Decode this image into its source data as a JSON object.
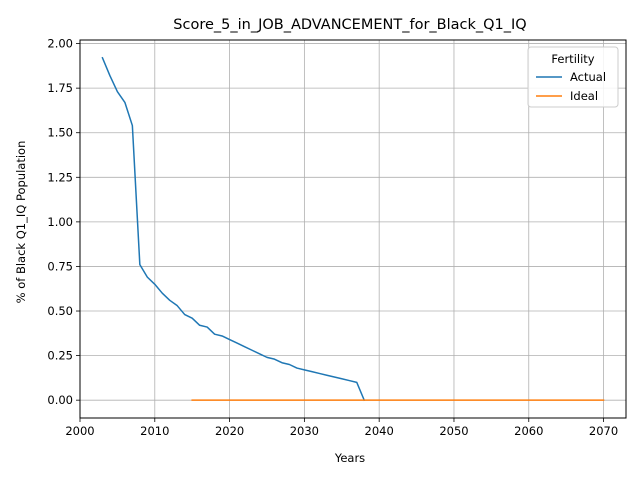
{
  "chart_data": {
    "type": "line",
    "title": "Score_5_in_JOB_ADVANCEMENT_for_Black_Q1_IQ",
    "xlabel": "Years",
    "ylabel": "% of Black Q1_IQ Population",
    "xlim": [
      2000,
      2073
    ],
    "ylim": [
      -0.1,
      2.02
    ],
    "xticks": [
      2000,
      2010,
      2020,
      2030,
      2040,
      2050,
      2060,
      2070
    ],
    "yticks": [
      0.0,
      0.25,
      0.5,
      0.75,
      1.0,
      1.25,
      1.5,
      1.75,
      2.0
    ],
    "xtick_labels": [
      "2000",
      "2010",
      "2020",
      "2030",
      "2040",
      "2050",
      "2060",
      "2070"
    ],
    "ytick_labels": [
      "0.00",
      "0.25",
      "0.50",
      "0.75",
      "1.00",
      "1.25",
      "1.50",
      "1.75",
      "2.00"
    ],
    "grid": true,
    "legend": {
      "title": "Fertility",
      "placement": "top-right"
    },
    "series": [
      {
        "name": "Actual",
        "color": "#1f77b4",
        "x": [
          2003,
          2004,
          2005,
          2006,
          2007,
          2008,
          2009,
          2010,
          2011,
          2012,
          2013,
          2014,
          2015,
          2016,
          2017,
          2018,
          2019,
          2020,
          2021,
          2022,
          2023,
          2024,
          2025,
          2026,
          2027,
          2028,
          2029,
          2030,
          2031,
          2032,
          2033,
          2034,
          2035,
          2036,
          2037,
          2038
        ],
        "y": [
          1.92,
          1.82,
          1.73,
          1.67,
          1.54,
          0.76,
          0.69,
          0.65,
          0.6,
          0.56,
          0.53,
          0.48,
          0.46,
          0.42,
          0.41,
          0.37,
          0.36,
          0.34,
          0.32,
          0.3,
          0.28,
          0.26,
          0.24,
          0.23,
          0.21,
          0.2,
          0.18,
          0.17,
          0.16,
          0.15,
          0.14,
          0.13,
          0.12,
          0.11,
          0.1,
          0.0
        ]
      },
      {
        "name": "Ideal",
        "color": "#ff7f0e",
        "x": [
          2015,
          2016,
          2017,
          2018,
          2019,
          2020,
          2021,
          2022,
          2023,
          2024,
          2025,
          2026,
          2027,
          2028,
          2029,
          2030,
          2031,
          2032,
          2033,
          2034,
          2035,
          2036,
          2037,
          2038,
          2039,
          2040,
          2041,
          2042,
          2043,
          2044,
          2045,
          2046,
          2047,
          2048,
          2049,
          2050,
          2051,
          2052,
          2053,
          2054,
          2055,
          2056,
          2057,
          2058,
          2059,
          2060,
          2061,
          2062,
          2063,
          2064,
          2065,
          2066,
          2067,
          2068,
          2069,
          2070
        ],
        "y": [
          0,
          0,
          0,
          0,
          0,
          0,
          0,
          0,
          0,
          0,
          0,
          0,
          0,
          0,
          0,
          0,
          0,
          0,
          0,
          0,
          0,
          0,
          0,
          0,
          0,
          0,
          0,
          0,
          0,
          0,
          0,
          0,
          0,
          0,
          0,
          0,
          0,
          0,
          0,
          0,
          0,
          0,
          0,
          0,
          0,
          0,
          0,
          0,
          0,
          0,
          0,
          0,
          0,
          0,
          0,
          0
        ]
      }
    ]
  }
}
